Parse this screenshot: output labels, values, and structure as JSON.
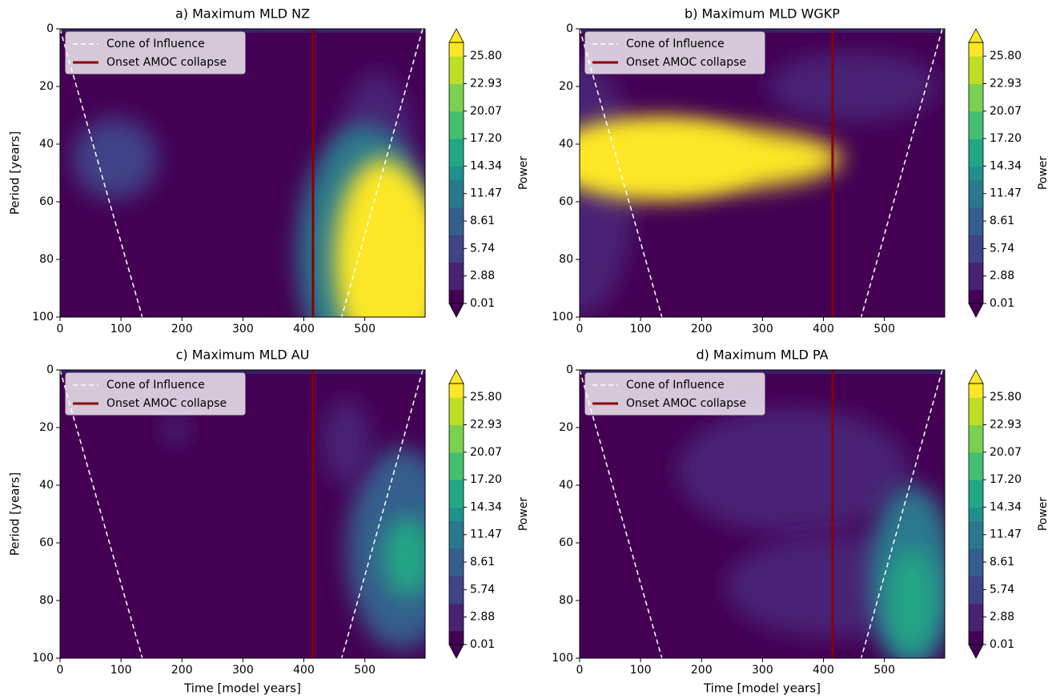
{
  "chart_data": [
    {
      "type": "contour",
      "title": "a) Maximum MLD NZ",
      "ylabel": "Period [years]",
      "xlim": [
        0,
        599
      ],
      "ylim": [
        0,
        100
      ],
      "y_inverted": true,
      "xticks": [
        0,
        100,
        200,
        300,
        400,
        500
      ],
      "yticks": [
        0,
        20,
        40,
        60,
        80,
        100
      ],
      "series": [
        {
          "name": "Cone of Influence",
          "color": "#ffffff",
          "dashed": true,
          "x": [
            0,
            135,
            null,
            595,
            462
          ],
          "y": [
            0,
            100,
            null,
            0,
            100
          ]
        },
        {
          "name": "Onset AMOC collapse",
          "color": "#8b0000",
          "x": [
            415,
            415
          ],
          "y": [
            0,
            100
          ]
        }
      ],
      "colorbar": {
        "label": "Power",
        "lim": [
          0.01,
          27.23
        ],
        "ticks": [
          0.01,
          2.88,
          5.74,
          8.61,
          11.47,
          14.34,
          17.2,
          20.07,
          22.93,
          25.8
        ],
        "tick_labels": [
          "0.01",
          "2.88",
          "5.74",
          "8.61",
          "11.47",
          "14.34",
          "17.20",
          "20.07",
          "22.93",
          "25.80"
        ]
      }
    },
    {
      "type": "contour",
      "title": "b) Maximum MLD WGKP",
      "xlim": [
        0,
        599
      ],
      "ylim": [
        0,
        100
      ],
      "y_inverted": true,
      "xticks": [
        0,
        100,
        200,
        300,
        400,
        500
      ],
      "yticks": [
        0,
        20,
        40,
        60,
        80,
        100
      ],
      "series": [
        {
          "name": "Cone of Influence",
          "color": "#ffffff",
          "dashed": true,
          "x": [
            0,
            135,
            null,
            595,
            462
          ],
          "y": [
            0,
            100,
            null,
            0,
            100
          ]
        },
        {
          "name": "Onset AMOC collapse",
          "color": "#8b0000",
          "x": [
            415,
            415
          ],
          "y": [
            0,
            100
          ]
        }
      ],
      "colorbar": {
        "label": "Power",
        "lim": [
          0.01,
          27.23
        ],
        "ticks": [
          0.01,
          2.88,
          5.74,
          8.61,
          11.47,
          14.34,
          17.2,
          20.07,
          22.93,
          25.8
        ],
        "tick_labels": [
          "0.01",
          "2.88",
          "5.74",
          "8.61",
          "11.47",
          "14.34",
          "17.20",
          "20.07",
          "22.93",
          "25.80"
        ]
      }
    },
    {
      "type": "contour",
      "title": "c) Maximum MLD AU",
      "xlabel": "Time [model years]",
      "ylabel": "Period [years]",
      "xlim": [
        0,
        599
      ],
      "ylim": [
        0,
        100
      ],
      "y_inverted": true,
      "xticks": [
        0,
        100,
        200,
        300,
        400,
        500
      ],
      "yticks": [
        0,
        20,
        40,
        60,
        80,
        100
      ],
      "series": [
        {
          "name": "Cone of Influence",
          "color": "#ffffff",
          "dashed": true,
          "x": [
            0,
            135,
            null,
            595,
            462
          ],
          "y": [
            0,
            100,
            null,
            0,
            100
          ]
        },
        {
          "name": "Onset AMOC collapse",
          "color": "#8b0000",
          "x": [
            415,
            415
          ],
          "y": [
            0,
            100
          ]
        }
      ],
      "colorbar": {
        "label": "Power",
        "lim": [
          0.01,
          27.23
        ],
        "ticks": [
          0.01,
          2.88,
          5.74,
          8.61,
          11.47,
          14.34,
          17.2,
          20.07,
          22.93,
          25.8
        ],
        "tick_labels": [
          "0.01",
          "2.88",
          "5.74",
          "8.61",
          "11.47",
          "14.34",
          "17.20",
          "20.07",
          "22.93",
          "25.80"
        ]
      }
    },
    {
      "type": "contour",
      "title": "d) Maximum MLD PA",
      "xlabel": "Time [model years]",
      "xlim": [
        0,
        599
      ],
      "ylim": [
        0,
        100
      ],
      "y_inverted": true,
      "xticks": [
        0,
        100,
        200,
        300,
        400,
        500
      ],
      "yticks": [
        0,
        20,
        40,
        60,
        80,
        100
      ],
      "series": [
        {
          "name": "Cone of Influence",
          "color": "#ffffff",
          "dashed": true,
          "x": [
            0,
            135,
            null,
            595,
            462
          ],
          "y": [
            0,
            100,
            null,
            0,
            100
          ]
        },
        {
          "name": "Onset AMOC collapse",
          "color": "#8b0000",
          "x": [
            415,
            415
          ],
          "y": [
            0,
            100
          ]
        }
      ],
      "colorbar": {
        "label": "Power",
        "lim": [
          0.01,
          27.23
        ],
        "ticks": [
          0.01,
          2.88,
          5.74,
          8.61,
          11.47,
          14.34,
          17.2,
          20.07,
          22.93,
          25.8
        ],
        "tick_labels": [
          "0.01",
          "2.88",
          "5.74",
          "8.61",
          "11.47",
          "14.34",
          "17.20",
          "20.07",
          "22.93",
          "25.80"
        ]
      }
    }
  ]
}
